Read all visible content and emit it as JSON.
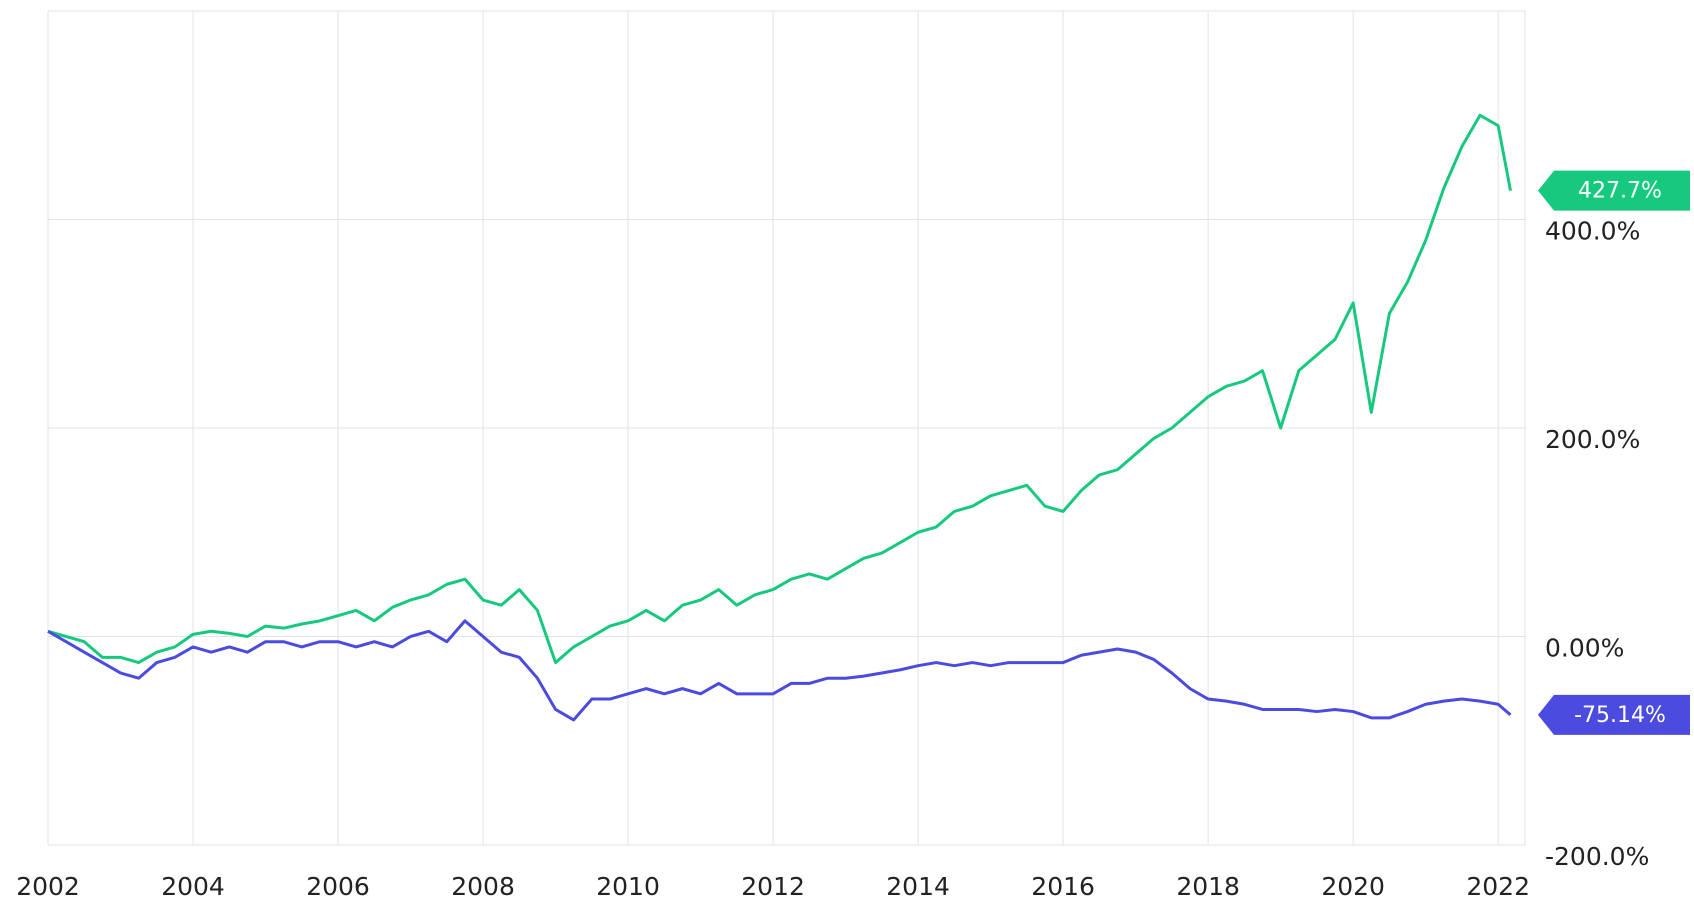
{
  "chart_data": {
    "type": "line",
    "x": [
      2002,
      2002.25,
      2002.5,
      2002.75,
      2003,
      2003.25,
      2003.5,
      2003.75,
      2004,
      2004.25,
      2004.5,
      2004.75,
      2005,
      2005.25,
      2005.5,
      2005.75,
      2006,
      2006.25,
      2006.5,
      2006.75,
      2007,
      2007.25,
      2007.5,
      2007.75,
      2008,
      2008.25,
      2008.5,
      2008.75,
      2009,
      2009.25,
      2009.5,
      2009.75,
      2010,
      2010.25,
      2010.5,
      2010.75,
      2011,
      2011.25,
      2011.5,
      2011.75,
      2012,
      2012.25,
      2012.5,
      2012.75,
      2013,
      2013.25,
      2013.5,
      2013.75,
      2014,
      2014.25,
      2014.5,
      2014.75,
      2015,
      2015.25,
      2015.5,
      2015.75,
      2016,
      2016.25,
      2016.5,
      2016.75,
      2017,
      2017.25,
      2017.5,
      2017.75,
      2018,
      2018.25,
      2018.5,
      2018.75,
      2019,
      2019.25,
      2019.5,
      2019.75,
      2020,
      2020.25,
      2020.5,
      2020.75,
      2021,
      2021.25,
      2021.5,
      2021.75,
      2022,
      2022.17
    ],
    "series": [
      {
        "color": "#17c97e",
        "values": [
          5,
          0,
          -5,
          -20,
          -20,
          -25,
          -15,
          -10,
          2,
          5,
          3,
          0,
          10,
          8,
          12,
          15,
          20,
          25,
          15,
          28,
          35,
          40,
          50,
          55,
          35,
          30,
          45,
          25,
          -25,
          -10,
          0,
          10,
          15,
          25,
          15,
          30,
          35,
          45,
          30,
          40,
          45,
          55,
          60,
          55,
          65,
          75,
          80,
          90,
          100,
          105,
          120,
          125,
          135,
          140,
          145,
          125,
          120,
          140,
          155,
          160,
          175,
          190,
          200,
          215,
          230,
          240,
          245,
          255,
          200,
          255,
          270,
          285,
          320,
          215,
          310,
          340,
          380,
          430,
          470,
          500,
          490,
          427.7
        ],
        "value_labels": [
          null,
          null,
          null,
          null,
          null,
          null,
          null,
          null,
          null,
          null,
          null,
          null,
          null,
          null,
          null,
          null,
          null,
          null,
          null,
          null,
          null,
          null,
          null,
          null,
          null,
          null,
          null,
          null,
          null,
          null,
          null,
          null,
          null,
          null,
          null,
          null,
          null,
          null,
          null,
          null,
          null,
          null,
          null,
          null,
          null,
          null,
          null,
          null,
          null,
          null,
          null,
          null,
          null,
          null,
          null,
          null,
          null,
          null,
          null,
          null,
          null,
          null,
          null,
          null,
          null,
          null,
          null,
          null,
          null,
          null,
          null,
          null,
          null,
          null,
          null,
          null,
          null,
          null,
          null,
          null,
          null,
          "427.7%"
        ]
      },
      {
        "color": "#4b4bdf",
        "values": [
          5,
          -5,
          -15,
          -25,
          -35,
          -40,
          -25,
          -20,
          -10,
          -15,
          -10,
          -15,
          -5,
          -5,
          -10,
          -5,
          -5,
          -10,
          -5,
          -10,
          0,
          5,
          -5,
          15,
          0,
          -15,
          -20,
          -40,
          -70,
          -80,
          -60,
          -60,
          -55,
          -50,
          -55,
          -50,
          -55,
          -45,
          -55,
          -55,
          -55,
          -45,
          -45,
          -40,
          -40,
          -38,
          -35,
          -32,
          -28,
          -25,
          -28,
          -25,
          -28,
          -25,
          -25,
          -25,
          -25,
          -18,
          -15,
          -12,
          -15,
          -22,
          -35,
          -50,
          -60,
          -62,
          -65,
          -70,
          -70,
          -70,
          -72,
          -70,
          -72,
          -78,
          -78,
          -72,
          -65,
          -62,
          -60,
          -62,
          -65,
          -75.14
        ],
        "value_labels": [
          null,
          null,
          null,
          null,
          null,
          null,
          null,
          null,
          null,
          null,
          null,
          null,
          null,
          null,
          null,
          null,
          null,
          null,
          null,
          null,
          null,
          null,
          null,
          null,
          null,
          null,
          null,
          null,
          null,
          null,
          null,
          null,
          null,
          null,
          null,
          null,
          null,
          null,
          null,
          null,
          null,
          null,
          null,
          null,
          null,
          null,
          null,
          null,
          null,
          null,
          null,
          null,
          null,
          null,
          null,
          null,
          null,
          null,
          null,
          null,
          null,
          null,
          null,
          null,
          null,
          null,
          null,
          null,
          null,
          null,
          null,
          null,
          null,
          null,
          null,
          null,
          null,
          null,
          null,
          null,
          null,
          "-75.14%"
        ]
      }
    ],
    "xlim": [
      2002,
      2022.37
    ],
    "xticks": [
      2002,
      2004,
      2006,
      2008,
      2010,
      2012,
      2014,
      2016,
      2018,
      2020,
      2022
    ],
    "ylim": [
      -200,
      600
    ],
    "yticks": [
      {
        "value": -200,
        "label": "-200.0%"
      },
      {
        "value": 0,
        "label": "0.00%"
      },
      {
        "value": 200,
        "label": "200.0%"
      },
      {
        "value": 400,
        "label": "400.0%"
      }
    ],
    "grid": true
  }
}
